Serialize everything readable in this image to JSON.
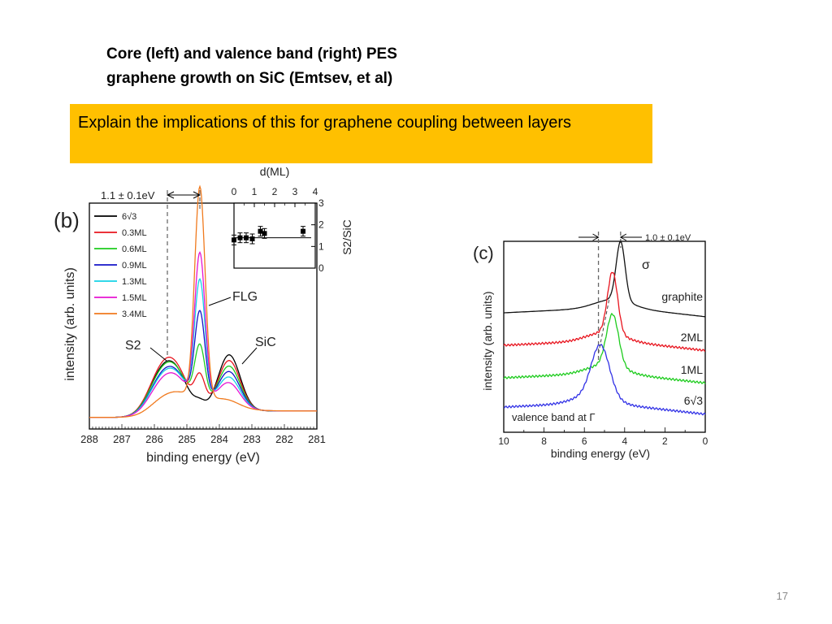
{
  "title": {
    "line1": "Core (left) and valence band (right) PES",
    "line2": "graphene growth on SiC (Emtsev, et al)"
  },
  "callout": "Explain the implications of this for graphene coupling between layers",
  "slide_number": "17",
  "chart_data": [
    {
      "type": "line",
      "panel": "(b)",
      "xlabel": "binding energy (eV)",
      "ylabel": "intensity (arb. units)",
      "xlim": [
        288,
        281
      ],
      "x_ticks": [
        "288",
        "287",
        "286",
        "285",
        "284",
        "283",
        "282",
        "281"
      ],
      "annotations": {
        "shift": "1.1 ± 0.1eV",
        "s2": "S2",
        "sic": "SiC",
        "flg": "FLG"
      },
      "legend_placement": "top-left",
      "series": [
        {
          "name": "6√3",
          "color": "#000000",
          "s2": 0.2,
          "flg": 0.03,
          "sic": 0.26
        },
        {
          "name": "0.3ML",
          "color": "#e8141e",
          "s2": 0.21,
          "flg": 0.14,
          "sic": 0.23
        },
        {
          "name": "0.6ML",
          "color": "#1ecc1e",
          "s2": 0.19,
          "flg": 0.27,
          "sic": 0.2
        },
        {
          "name": "0.9ML",
          "color": "#1414c8",
          "s2": 0.17,
          "flg": 0.42,
          "sic": 0.17
        },
        {
          "name": "1.3ML",
          "color": "#14d2e6",
          "s2": 0.16,
          "flg": 0.56,
          "sic": 0.14
        },
        {
          "name": "1.5ML",
          "color": "#e614d2",
          "s2": 0.14,
          "flg": 0.68,
          "sic": 0.11
        },
        {
          "name": "3.4ML",
          "color": "#f07a1e",
          "s2": 0.06,
          "flg": 0.98,
          "sic": 0.02
        }
      ],
      "inset": {
        "type": "scatter",
        "xlabel": "d(ML)",
        "ylabel": "S2/SiC",
        "xlim": [
          0,
          4
        ],
        "ylim": [
          0,
          3
        ],
        "x_ticks": [
          "0",
          "1",
          "2",
          "3",
          "4"
        ],
        "y_ticks": [
          "0",
          "1",
          "2",
          "3"
        ],
        "x": [
          0.0,
          0.3,
          0.6,
          0.9,
          1.3,
          1.5,
          3.4
        ],
        "y": [
          1.3,
          1.4,
          1.4,
          1.35,
          1.7,
          1.6,
          1.7
        ],
        "fit_y": 1.4
      }
    },
    {
      "type": "line",
      "panel": "(c)",
      "xlabel": "binding energy (eV)",
      "ylabel": "intensity (arb. units)",
      "xlim": [
        10,
        0
      ],
      "x_ticks": [
        "10",
        "8",
        "6",
        "4",
        "2",
        "0"
      ],
      "annotations": {
        "shift": "1.0 ± 0.1eV",
        "sigma": "σ",
        "valence": "valence band at Γ"
      },
      "series": [
        {
          "name": "graphite",
          "color": "#111111",
          "peak_eV": 4.2
        },
        {
          "name": "2ML",
          "color": "#e8141e",
          "peak_eV": 4.6
        },
        {
          "name": "1ML",
          "color": "#1ecc1e",
          "peak_eV": 4.6
        },
        {
          "name": "6√3",
          "color": "#3232e6",
          "peak_eV": 5.2
        }
      ]
    }
  ]
}
